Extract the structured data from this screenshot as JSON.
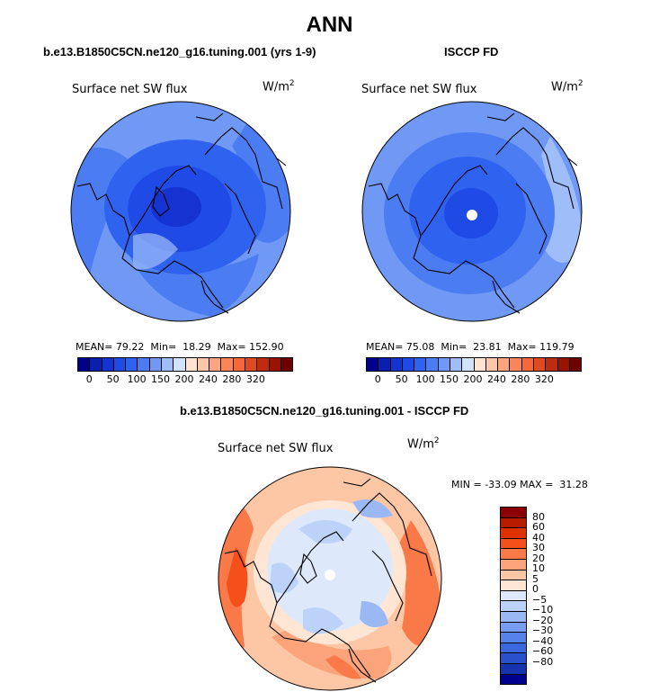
{
  "main_title": "ANN",
  "panels": [
    {
      "title": "b.e13.B1850C5CN.ne120_g16.tuning.001 (yrs 1-9)",
      "variable": "Surface net SW flux",
      "units": "W/m",
      "units_exp": "2",
      "mean_label": "MEAN=",
      "mean": "79.22",
      "min_label": "Min=",
      "min": "18.29",
      "max_label": "Max=",
      "max": "152.90"
    },
    {
      "title": "ISCCP FD",
      "variable": "Surface net SW flux",
      "units": "W/m",
      "units_exp": "2",
      "mean_label": "MEAN=",
      "mean": "75.08",
      "min_label": "Min=",
      "min": "23.81",
      "max_label": "Max=",
      "max": "119.79"
    }
  ],
  "abs_colorbar": {
    "colors": [
      "#00008b",
      "#0a1fb0",
      "#1433d1",
      "#1f4ae6",
      "#2f62ef",
      "#4b7cf2",
      "#6f99f5",
      "#9fbdf8",
      "#d2e2fb",
      "#ffe3d0",
      "#fdc6a6",
      "#fca47e",
      "#f98559",
      "#f4683a",
      "#e04a20",
      "#c02b10",
      "#961400",
      "#6e0000"
    ],
    "ticks": [
      "0",
      "50",
      "100",
      "150",
      "200",
      "240",
      "280",
      "320"
    ]
  },
  "diff_panel": {
    "title": "b.e13.B1850C5CN.ne120_g16.tuning.001 - ISCCP FD",
    "variable": "Surface net SW flux",
    "units": "W/m",
    "units_exp": "2",
    "min_label": "MIN =",
    "min": "-33.09",
    "max_label": "MAX =",
    "max": "31.28"
  },
  "diff_colorbar": {
    "colors": [
      "#8b0000",
      "#b81a00",
      "#e03000",
      "#f5501c",
      "#f97a48",
      "#fba37a",
      "#fdc7a6",
      "#fee5d4",
      "#dde9fb",
      "#bcd2f8",
      "#99b8f4",
      "#779ef0",
      "#5583ea",
      "#3a68df",
      "#2a50cc",
      "#1634b0",
      "#000090"
    ],
    "ticks": [
      "80",
      "60",
      "40",
      "30",
      "20",
      "10",
      "5",
      "0",
      "−5",
      "−10",
      "−20",
      "−30",
      "−40",
      "−60",
      "−80"
    ]
  }
}
